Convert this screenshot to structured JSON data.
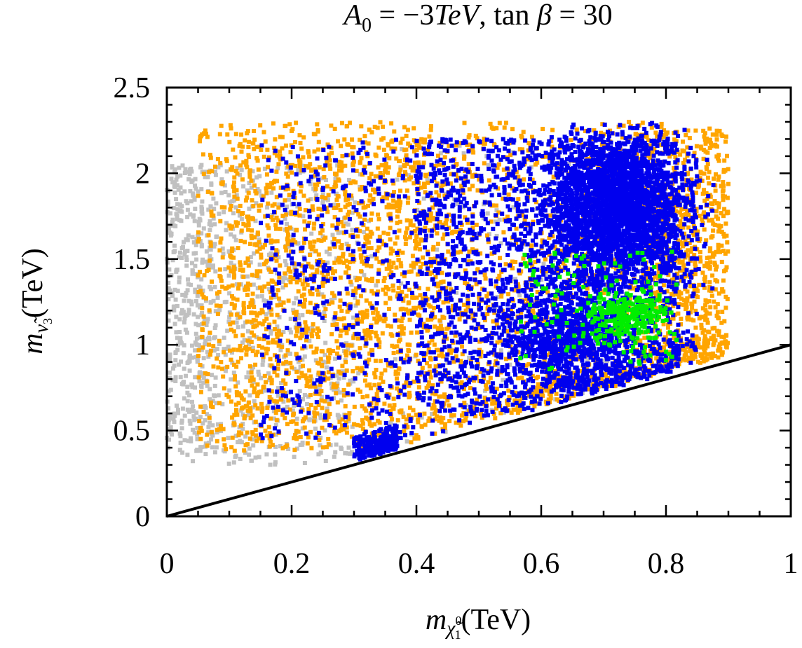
{
  "chart_data": {
    "type": "scatter",
    "title": {
      "lhs_symbol": "A",
      "lhs_sub": "0",
      "eq1": " = −3",
      "unit_italic": "TeV",
      "comma": ", ",
      "func": "tan ",
      "beta": "β",
      "eq2": " = 30"
    },
    "xlabel": {
      "symbol": "m",
      "sub": "χ̃",
      "sub_sup": "0",
      "sub_sub": "1",
      "unit": "(TeV)"
    },
    "ylabel": {
      "symbol": "m",
      "sub": "ν̃",
      "sub_sub": "3",
      "unit": "(TeV)"
    },
    "xlim": [
      0,
      1
    ],
    "ylim": [
      0,
      2.5
    ],
    "xticks": [
      {
        "value": 0,
        "label": "0"
      },
      {
        "value": 0.2,
        "label": "0.2"
      },
      {
        "value": 0.4,
        "label": "0.4"
      },
      {
        "value": 0.6,
        "label": "0.6"
      },
      {
        "value": 0.8,
        "label": "0.8"
      },
      {
        "value": 1,
        "label": "1"
      }
    ],
    "yticks": [
      {
        "value": 0,
        "label": "0"
      },
      {
        "value": 0.5,
        "label": "0.5"
      },
      {
        "value": 1,
        "label": "1"
      },
      {
        "value": 1.5,
        "label": "1.5"
      },
      {
        "value": 2,
        "label": "2"
      },
      {
        "value": 2.5,
        "label": "2.5"
      }
    ],
    "line": {
      "name": "diagonal",
      "x": [
        0,
        1
      ],
      "y": [
        0,
        1
      ],
      "color": "#000000"
    },
    "series": [
      {
        "name": "gray",
        "color": "#c0c0c0",
        "marker_size": 6,
        "regions": [
          {
            "x_range": [
              0.0,
              0.3
            ],
            "y_range": [
              0.3,
              2.05
            ],
            "n": 650,
            "ymin_slope": 1.0,
            "ymin_off": 0.05
          },
          {
            "x_range": [
              0.0,
              0.08
            ],
            "y_range": [
              0.4,
              2.05
            ],
            "n": 300,
            "ymin_slope": 1.0,
            "ymin_off": 0.05
          },
          {
            "x_range": [
              0.3,
              0.72
            ],
            "y_range": [
              0.4,
              2.2
            ],
            "n": 180,
            "ymin_slope": 1.0,
            "ymin_off": 0.04
          }
        ]
      },
      {
        "name": "orange",
        "color": "#ffa500",
        "marker_size": 6,
        "regions": [
          {
            "x_range": [
              0.05,
              0.9
            ],
            "y_range": [
              0.38,
              2.3
            ],
            "n": 2400,
            "ymin_slope": 1.0,
            "ymin_off": 0.04
          },
          {
            "x_range": [
              0.1,
              0.45
            ],
            "y_range": [
              0.45,
              2.2
            ],
            "n": 800,
            "ymin_slope": 1.0,
            "ymin_off": 0.1
          },
          {
            "x_range": [
              0.75,
              0.9
            ],
            "y_range": [
              0.9,
              2.25
            ],
            "n": 500,
            "ymin_slope": 1.0,
            "ymin_off": 0.05
          }
        ]
      },
      {
        "name": "blue",
        "color": "#0000ee",
        "marker_size": 6,
        "regions": [
          {
            "x_range": [
              0.15,
              0.85
            ],
            "y_range": [
              0.45,
              2.2
            ],
            "n": 1100,
            "ymin_slope": 1.0,
            "ymin_off": 0.05
          },
          {
            "x_range": [
              0.4,
              0.82
            ],
            "y_range": [
              0.6,
              2.2
            ],
            "n": 1300,
            "ymin_slope": 1.0,
            "ymin_off": 0.03
          },
          {
            "ellipse": [
              0.72,
              1.8,
              0.11,
              0.42
            ],
            "n": 2600
          },
          {
            "ellipse": [
              0.64,
              1.05,
              0.1,
              0.28
            ],
            "n": 700
          },
          {
            "x_range": [
              0.3,
              0.37
            ],
            "y_range": [
              0.33,
              0.47
            ],
            "n": 220,
            "ymin_slope": 1.0,
            "ymin_off": 0.02
          }
        ]
      },
      {
        "name": "green",
        "color": "#00ee00",
        "marker_size": 6,
        "regions": [
          {
            "ellipse": [
              0.735,
              1.17,
              0.06,
              0.14
            ],
            "n": 260
          },
          {
            "x_range": [
              0.56,
              0.82
            ],
            "y_range": [
              0.85,
              1.55
            ],
            "n": 110,
            "ymin_slope": 1.0,
            "ymin_off": 0.1
          }
        ]
      }
    ]
  }
}
